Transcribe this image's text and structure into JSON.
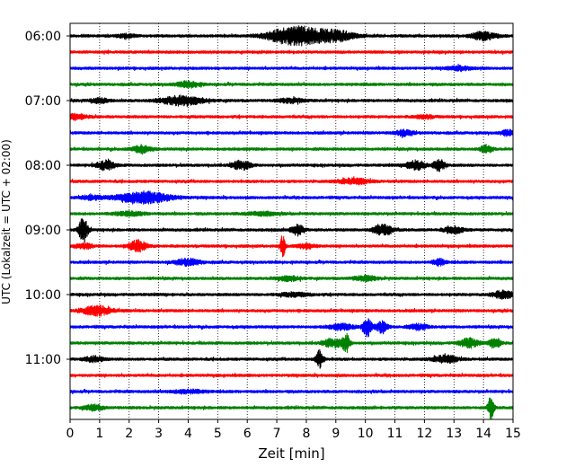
{
  "chart_data": {
    "type": "line",
    "title": "",
    "xlabel": "Zeit  [min]",
    "ylabel": "UTC (Lokalzeit = UTC + 02:00)",
    "xlim": [
      0,
      15
    ],
    "x_ticks": [
      0,
      1,
      2,
      3,
      4,
      5,
      6,
      7,
      8,
      9,
      10,
      11,
      12,
      13,
      14,
      15
    ],
    "x_tick_labels": [
      "0",
      "1",
      "2",
      "3",
      "4",
      "5",
      "6",
      "7",
      "8",
      "9",
      "10",
      "11",
      "12",
      "13",
      "14",
      "15"
    ],
    "y_tick_labels": [
      "06:00",
      "07:00",
      "08:00",
      "09:00",
      "10:00",
      "11:00"
    ],
    "grid": "vertical dotted lines at each minute",
    "legend": "none",
    "trace_colors": [
      "#000000",
      "#ff0000",
      "#0000ff",
      "#008000"
    ],
    "traces": [
      {
        "start": "06:00",
        "color": "#000000",
        "events": [
          [
            7.3,
            7.0,
            0.7
          ],
          [
            8.0,
            7.0,
            0.6
          ],
          [
            9.0,
            6.0,
            0.6
          ],
          [
            14.0,
            4.5,
            0.4
          ],
          [
            1.9,
            2.0,
            0.3
          ]
        ]
      },
      {
        "start": "06:15",
        "color": "#ff0000",
        "events": []
      },
      {
        "start": "06:30",
        "color": "#0000ff",
        "events": [
          [
            13.2,
            2.0,
            0.4
          ]
        ]
      },
      {
        "start": "06:45",
        "color": "#008000",
        "events": [
          [
            4.0,
            3.0,
            0.4
          ]
        ]
      },
      {
        "start": "07:00",
        "color": "#000000",
        "events": [
          [
            3.8,
            5.0,
            0.7
          ],
          [
            1.0,
            2.5,
            0.3
          ],
          [
            7.5,
            2.5,
            0.4
          ]
        ]
      },
      {
        "start": "07:15",
        "color": "#ff0000",
        "events": [
          [
            0.2,
            2.5,
            0.4
          ],
          [
            12.0,
            2.0,
            0.3
          ]
        ]
      },
      {
        "start": "07:30",
        "color": "#0000ff",
        "events": [
          [
            11.3,
            3.0,
            0.3
          ],
          [
            14.8,
            3.0,
            0.2
          ]
        ]
      },
      {
        "start": "07:45",
        "color": "#008000",
        "events": [
          [
            2.4,
            4.0,
            0.3
          ],
          [
            14.1,
            4.0,
            0.2
          ]
        ]
      },
      {
        "start": "08:00",
        "color": "#000000",
        "events": [
          [
            1.2,
            5.0,
            0.3
          ],
          [
            5.8,
            5.0,
            0.3
          ],
          [
            11.7,
            5.0,
            0.3
          ],
          [
            12.5,
            6.0,
            0.2
          ]
        ]
      },
      {
        "start": "08:15",
        "color": "#ff0000",
        "events": [
          [
            9.6,
            3.0,
            0.5
          ]
        ]
      },
      {
        "start": "08:30",
        "color": "#0000ff",
        "events": [
          [
            2.5,
            6.0,
            0.9
          ],
          [
            0.7,
            2.0,
            0.4
          ]
        ]
      },
      {
        "start": "08:45",
        "color": "#008000",
        "events": [
          [
            2.0,
            2.0,
            0.5
          ],
          [
            6.5,
            2.0,
            0.5
          ]
        ]
      },
      {
        "start": "09:00",
        "color": "#000000",
        "events": [
          [
            0.45,
            14.0,
            0.15
          ],
          [
            7.7,
            6.0,
            0.2
          ],
          [
            10.6,
            7.0,
            0.3
          ],
          [
            13.0,
            4.0,
            0.3
          ]
        ]
      },
      {
        "start": "09:15",
        "color": "#ff0000",
        "events": [
          [
            7.2,
            12.0,
            0.08
          ],
          [
            2.3,
            6.0,
            0.3
          ],
          [
            0.5,
            2.5,
            0.3
          ],
          [
            8.0,
            2.5,
            0.3
          ]
        ]
      },
      {
        "start": "09:30",
        "color": "#0000ff",
        "events": [
          [
            4.0,
            3.5,
            0.4
          ],
          [
            12.5,
            3.5,
            0.2
          ]
        ]
      },
      {
        "start": "09:45",
        "color": "#008000",
        "events": [
          [
            7.4,
            2.5,
            0.4
          ],
          [
            10.0,
            2.5,
            0.4
          ]
        ]
      },
      {
        "start": "10:00",
        "color": "#000000",
        "events": [
          [
            14.7,
            4.0,
            0.4
          ],
          [
            7.6,
            2.0,
            0.5
          ]
        ]
      },
      {
        "start": "10:15",
        "color": "#ff0000",
        "events": [
          [
            0.9,
            5.0,
            0.5
          ]
        ]
      },
      {
        "start": "10:30",
        "color": "#0000ff",
        "events": [
          [
            10.05,
            11.0,
            0.15
          ],
          [
            10.55,
            6.0,
            0.2
          ],
          [
            9.2,
            3.0,
            0.4
          ],
          [
            11.8,
            3.0,
            0.3
          ]
        ]
      },
      {
        "start": "10:45",
        "color": "#008000",
        "events": [
          [
            9.35,
            10.0,
            0.12
          ],
          [
            8.9,
            5.0,
            0.3
          ],
          [
            13.5,
            5.0,
            0.3
          ],
          [
            14.4,
            5.0,
            0.2
          ]
        ]
      },
      {
        "start": "11:00",
        "color": "#000000",
        "events": [
          [
            8.45,
            11.0,
            0.12
          ],
          [
            12.7,
            4.0,
            0.4
          ],
          [
            0.8,
            3.0,
            0.3
          ]
        ]
      },
      {
        "start": "11:15",
        "color": "#ff0000",
        "events": []
      },
      {
        "start": "11:30",
        "color": "#0000ff",
        "events": [
          [
            4.0,
            2.0,
            0.5
          ]
        ]
      },
      {
        "start": "11:45",
        "color": "#008000",
        "events": [
          [
            14.25,
            12.0,
            0.1
          ],
          [
            0.8,
            3.0,
            0.3
          ]
        ]
      }
    ]
  }
}
